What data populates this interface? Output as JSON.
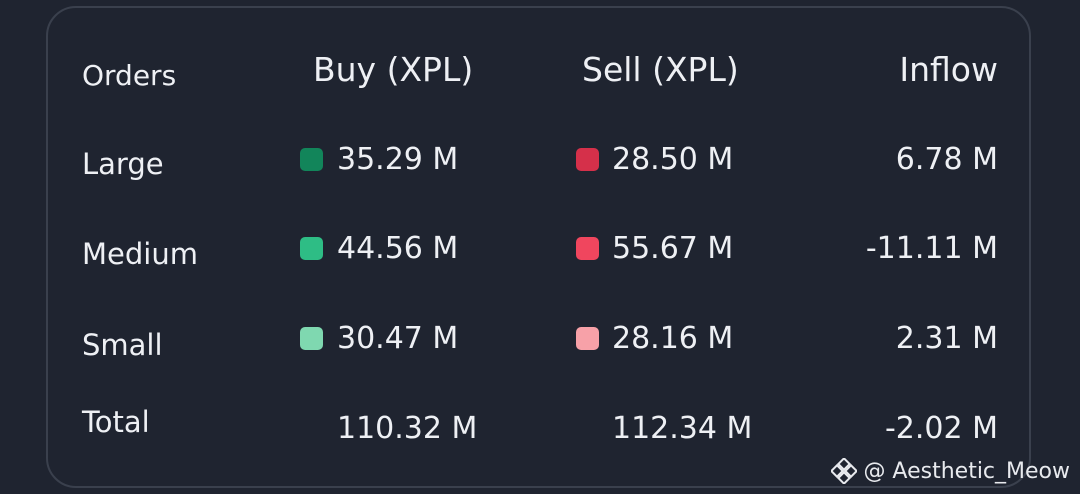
{
  "headers": {
    "orders": "Orders",
    "buy": "Buy (XPL)",
    "sell": "Sell (XPL)",
    "inflow": "Inflow"
  },
  "rows": [
    {
      "label": "Large",
      "buy": "35.29 M",
      "sell": "28.50 M",
      "inflow": "6.78 M",
      "buy_color": "#12855a",
      "sell_color": "#d5304a"
    },
    {
      "label": "Medium",
      "buy": "44.56 M",
      "sell": "55.67 M",
      "inflow": "-11.11 M",
      "buy_color": "#2ebd85",
      "sell_color": "#f0465e"
    },
    {
      "label": "Small",
      "buy": "30.47 M",
      "sell": "28.16 M",
      "inflow": "2.31 M",
      "buy_color": "#7fd8b0",
      "sell_color": "#f7a1a8"
    }
  ],
  "total": {
    "label": "Total",
    "buy": "110.32 M",
    "sell": "112.34 M",
    "inflow": "-2.02 M"
  },
  "watermark": {
    "icon": "binance-diamond-icon",
    "text": "@ Aesthetic_Meow"
  }
}
